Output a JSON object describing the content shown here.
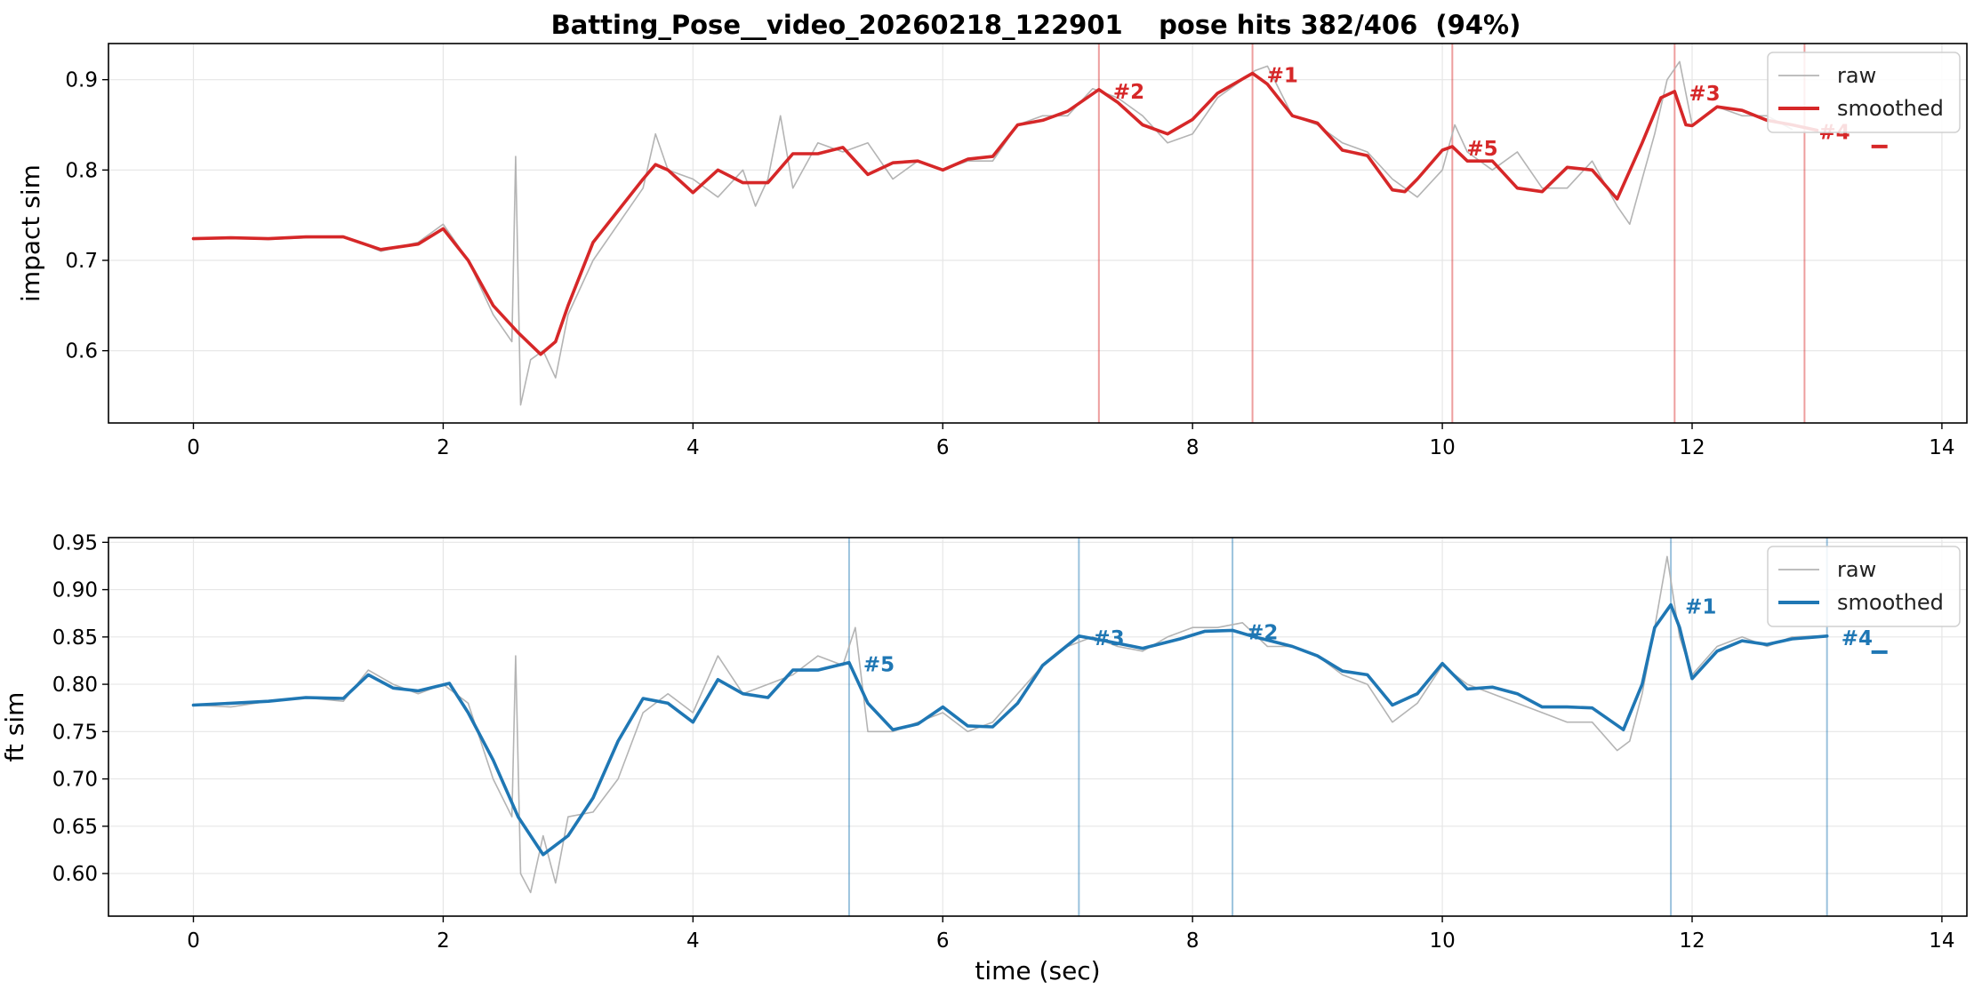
{
  "title": "Batting_Pose__video_20260218_122901    pose hits 382/406  (94%)",
  "colors": {
    "raw": "#b4b4b4",
    "impact": "#d62728",
    "ft": "#1f77b4",
    "grid": "#e6e6e6"
  },
  "chart_data": [
    {
      "type": "line",
      "title": "",
      "xlabel": "",
      "ylabel": "impact sim",
      "xlim": [
        -0.68,
        14.2
      ],
      "ylim": [
        0.52,
        0.94
      ],
      "xticks": [
        "0",
        "2",
        "4",
        "6",
        "8",
        "10",
        "12",
        "14"
      ],
      "yticks": [
        "0.6",
        "0.7",
        "0.8",
        "0.9"
      ],
      "grid": true,
      "legend": {
        "position": "top-right",
        "entries": [
          "raw",
          "smoothed"
        ]
      },
      "peaks": [
        {
          "label": "#2",
          "x": 7.25,
          "y": 0.889
        },
        {
          "label": "#1",
          "x": 8.48,
          "y": 0.907
        },
        {
          "label": "#5",
          "x": 10.08,
          "y": 0.826
        },
        {
          "label": "#3",
          "x": 11.86,
          "y": 0.887
        },
        {
          "label": "#4",
          "x": 12.9,
          "y": 0.844
        }
      ],
      "extra_marker": {
        "x": 13.5,
        "y": 0.826
      },
      "series": [
        {
          "name": "raw",
          "x": [
            0,
            0.3,
            0.6,
            0.9,
            1.2,
            1.5,
            1.8,
            2.0,
            2.2,
            2.4,
            2.55,
            2.58,
            2.62,
            2.7,
            2.8,
            2.9,
            3.0,
            3.2,
            3.4,
            3.6,
            3.7,
            3.8,
            4.0,
            4.2,
            4.4,
            4.5,
            4.6,
            4.7,
            4.8,
            5.0,
            5.2,
            5.4,
            5.6,
            5.8,
            6.0,
            6.2,
            6.4,
            6.6,
            6.8,
            7.0,
            7.2,
            7.4,
            7.6,
            7.8,
            8.0,
            8.2,
            8.4,
            8.5,
            8.6,
            8.8,
            9.0,
            9.2,
            9.4,
            9.6,
            9.8,
            10.0,
            10.1,
            10.2,
            10.4,
            10.6,
            10.8,
            11.0,
            11.2,
            11.4,
            11.5,
            11.6,
            11.7,
            11.8,
            11.9,
            12.0,
            12.2,
            12.4,
            12.6,
            12.8
          ],
          "y": [
            0.724,
            0.725,
            0.723,
            0.725,
            0.727,
            0.71,
            0.72,
            0.74,
            0.7,
            0.64,
            0.61,
            0.815,
            0.54,
            0.59,
            0.6,
            0.57,
            0.64,
            0.7,
            0.74,
            0.78,
            0.84,
            0.8,
            0.79,
            0.77,
            0.8,
            0.76,
            0.79,
            0.86,
            0.78,
            0.83,
            0.82,
            0.83,
            0.79,
            0.81,
            0.8,
            0.81,
            0.81,
            0.85,
            0.86,
            0.86,
            0.89,
            0.88,
            0.86,
            0.83,
            0.84,
            0.88,
            0.9,
            0.91,
            0.915,
            0.86,
            0.85,
            0.83,
            0.82,
            0.79,
            0.77,
            0.8,
            0.85,
            0.82,
            0.8,
            0.82,
            0.78,
            0.78,
            0.81,
            0.76,
            0.74,
            0.79,
            0.84,
            0.9,
            0.92,
            0.85,
            0.87,
            0.86,
            0.86,
            0.845
          ]
        },
        {
          "name": "smoothed",
          "x": [
            0,
            0.3,
            0.6,
            0.9,
            1.2,
            1.5,
            1.8,
            2.0,
            2.2,
            2.4,
            2.6,
            2.78,
            2.9,
            3.0,
            3.2,
            3.4,
            3.6,
            3.7,
            3.8,
            4.0,
            4.2,
            4.4,
            4.6,
            4.8,
            5.0,
            5.2,
            5.4,
            5.6,
            5.8,
            6.0,
            6.2,
            6.4,
            6.6,
            6.8,
            7.0,
            7.25,
            7.4,
            7.6,
            7.8,
            8.0,
            8.2,
            8.48,
            8.6,
            8.8,
            9.0,
            9.2,
            9.4,
            9.6,
            9.7,
            9.8,
            10.0,
            10.08,
            10.2,
            10.4,
            10.6,
            10.8,
            11.0,
            11.2,
            11.4,
            11.6,
            11.75,
            11.86,
            11.95,
            12.0,
            12.2,
            12.4,
            12.6,
            12.8,
            13.0
          ],
          "y": [
            0.724,
            0.725,
            0.724,
            0.726,
            0.726,
            0.712,
            0.718,
            0.735,
            0.7,
            0.65,
            0.62,
            0.596,
            0.61,
            0.65,
            0.72,
            0.755,
            0.79,
            0.806,
            0.8,
            0.775,
            0.8,
            0.786,
            0.786,
            0.818,
            0.818,
            0.825,
            0.795,
            0.808,
            0.81,
            0.8,
            0.812,
            0.815,
            0.85,
            0.855,
            0.865,
            0.889,
            0.875,
            0.85,
            0.84,
            0.856,
            0.885,
            0.907,
            0.895,
            0.86,
            0.852,
            0.822,
            0.816,
            0.778,
            0.776,
            0.79,
            0.822,
            0.826,
            0.81,
            0.81,
            0.78,
            0.776,
            0.803,
            0.8,
            0.768,
            0.83,
            0.88,
            0.887,
            0.85,
            0.849,
            0.87,
            0.866,
            0.855,
            0.85,
            0.844
          ]
        }
      ]
    },
    {
      "type": "line",
      "title": "",
      "xlabel": "time (sec)",
      "ylabel": "ft sim",
      "xlim": [
        -0.68,
        14.2
      ],
      "ylim": [
        0.555,
        0.955
      ],
      "xticks": [
        "0",
        "2",
        "4",
        "6",
        "8",
        "10",
        "12",
        "14"
      ],
      "yticks": [
        "0.60",
        "0.65",
        "0.70",
        "0.75",
        "0.80",
        "0.85",
        "0.90",
        "0.95"
      ],
      "grid": true,
      "legend": {
        "position": "top-right",
        "entries": [
          "raw",
          "smoothed"
        ]
      },
      "peaks": [
        {
          "label": "#5",
          "x": 5.25,
          "y": 0.823
        },
        {
          "label": "#3",
          "x": 7.09,
          "y": 0.851
        },
        {
          "label": "#2",
          "x": 8.32,
          "y": 0.857
        },
        {
          "label": "#1",
          "x": 11.83,
          "y": 0.884
        },
        {
          "label": "#4",
          "x": 13.08,
          "y": 0.851
        }
      ],
      "extra_marker": {
        "x": 13.5,
        "y": 0.834
      },
      "series": [
        {
          "name": "raw",
          "x": [
            0,
            0.3,
            0.6,
            0.9,
            1.2,
            1.4,
            1.6,
            1.8,
            2.0,
            2.2,
            2.4,
            2.55,
            2.58,
            2.62,
            2.7,
            2.8,
            2.9,
            3.0,
            3.2,
            3.4,
            3.6,
            3.8,
            4.0,
            4.2,
            4.4,
            4.6,
            4.8,
            5.0,
            5.2,
            5.3,
            5.4,
            5.6,
            5.8,
            6.0,
            6.2,
            6.4,
            6.6,
            6.8,
            7.0,
            7.2,
            7.4,
            7.6,
            7.8,
            8.0,
            8.2,
            8.4,
            8.6,
            8.8,
            9.0,
            9.2,
            9.4,
            9.6,
            9.8,
            10.0,
            10.2,
            10.4,
            10.6,
            10.8,
            11.0,
            11.2,
            11.4,
            11.5,
            11.6,
            11.7,
            11.8,
            11.9,
            12.0,
            12.2,
            12.4,
            12.6,
            12.8,
            13.0
          ],
          "y": [
            0.778,
            0.776,
            0.782,
            0.786,
            0.782,
            0.815,
            0.8,
            0.79,
            0.8,
            0.78,
            0.7,
            0.66,
            0.83,
            0.6,
            0.58,
            0.64,
            0.59,
            0.66,
            0.665,
            0.7,
            0.77,
            0.79,
            0.77,
            0.83,
            0.79,
            0.8,
            0.81,
            0.83,
            0.82,
            0.86,
            0.75,
            0.75,
            0.76,
            0.77,
            0.75,
            0.76,
            0.79,
            0.82,
            0.84,
            0.85,
            0.84,
            0.835,
            0.85,
            0.86,
            0.86,
            0.865,
            0.84,
            0.84,
            0.83,
            0.81,
            0.8,
            0.76,
            0.78,
            0.82,
            0.8,
            0.79,
            0.78,
            0.77,
            0.76,
            0.76,
            0.73,
            0.74,
            0.79,
            0.86,
            0.935,
            0.85,
            0.81,
            0.84,
            0.85,
            0.84,
            0.85,
            0.851
          ]
        },
        {
          "name": "smoothed",
          "x": [
            0,
            0.3,
            0.6,
            0.9,
            1.2,
            1.4,
            1.6,
            1.8,
            2.05,
            2.2,
            2.4,
            2.6,
            2.8,
            3.0,
            3.2,
            3.4,
            3.6,
            3.8,
            4.0,
            4.2,
            4.4,
            4.6,
            4.8,
            5.0,
            5.25,
            5.4,
            5.6,
            5.8,
            6.0,
            6.2,
            6.4,
            6.6,
            6.8,
            7.09,
            7.3,
            7.6,
            7.9,
            8.1,
            8.32,
            8.5,
            8.8,
            9.0,
            9.2,
            9.4,
            9.6,
            9.8,
            10.0,
            10.2,
            10.4,
            10.6,
            10.8,
            11.0,
            11.2,
            11.45,
            11.6,
            11.7,
            11.83,
            11.9,
            12.0,
            12.2,
            12.4,
            12.6,
            12.8,
            13.08
          ],
          "y": [
            0.778,
            0.78,
            0.782,
            0.786,
            0.785,
            0.81,
            0.796,
            0.793,
            0.801,
            0.77,
            0.72,
            0.66,
            0.62,
            0.64,
            0.68,
            0.74,
            0.785,
            0.78,
            0.76,
            0.805,
            0.79,
            0.786,
            0.815,
            0.815,
            0.823,
            0.78,
            0.752,
            0.758,
            0.776,
            0.756,
            0.755,
            0.78,
            0.82,
            0.851,
            0.846,
            0.838,
            0.848,
            0.856,
            0.857,
            0.85,
            0.84,
            0.83,
            0.814,
            0.81,
            0.778,
            0.79,
            0.822,
            0.795,
            0.797,
            0.79,
            0.776,
            0.776,
            0.775,
            0.752,
            0.8,
            0.86,
            0.884,
            0.86,
            0.806,
            0.835,
            0.846,
            0.842,
            0.848,
            0.851
          ]
        }
      ]
    }
  ]
}
